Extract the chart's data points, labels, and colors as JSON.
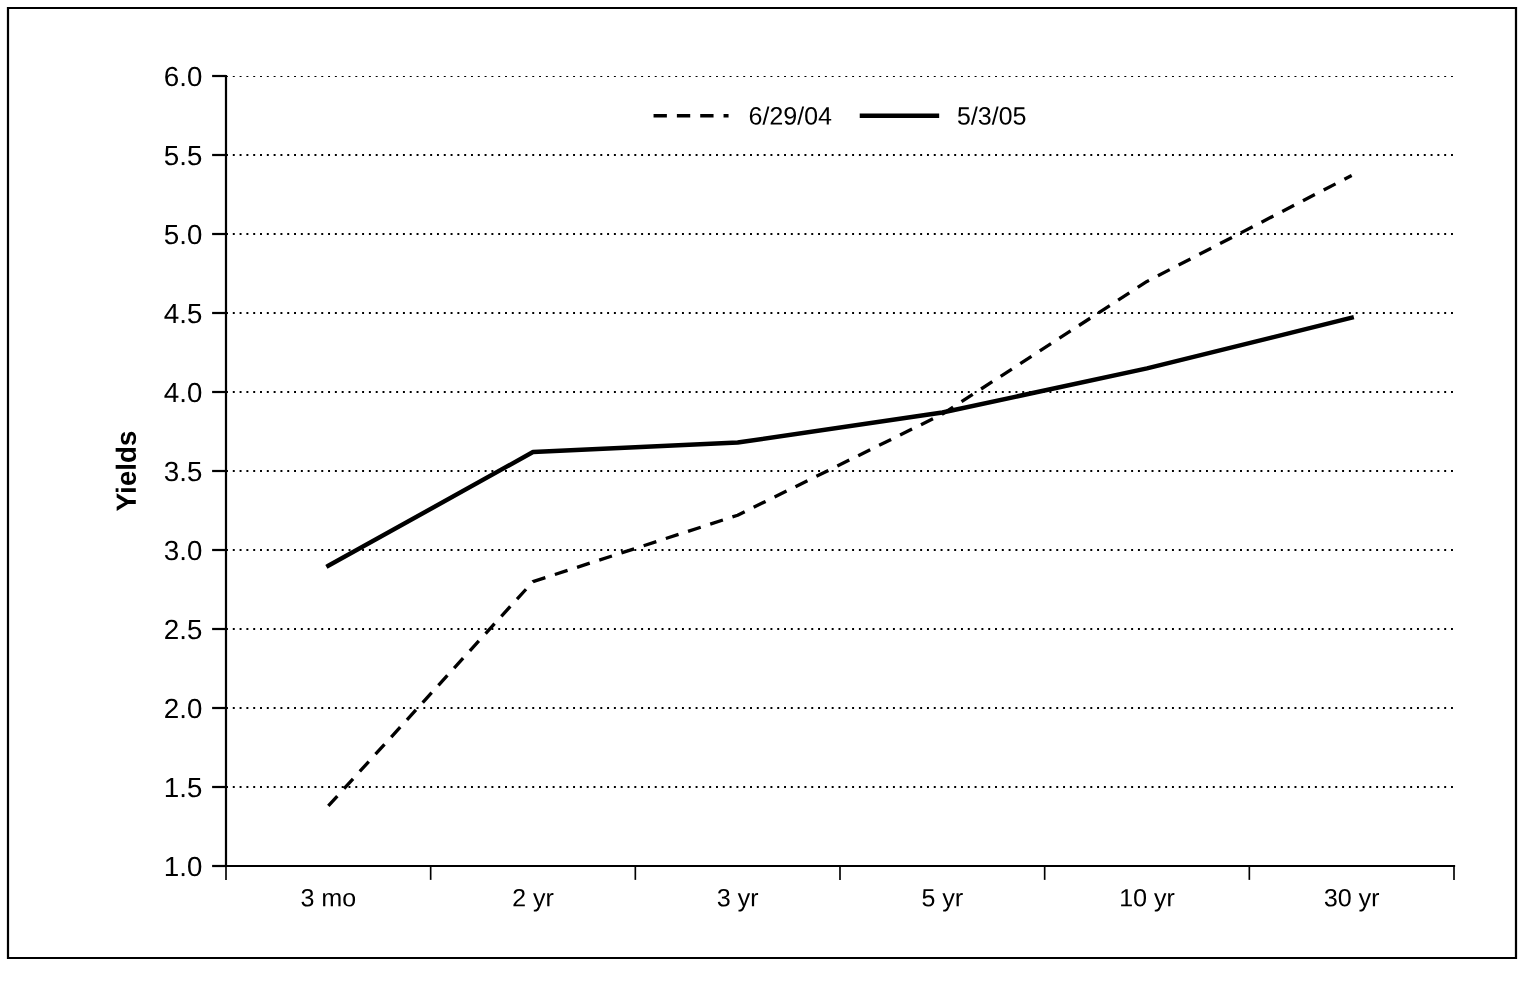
{
  "chart_data": {
    "type": "line",
    "ylabel": "Yields",
    "categories": [
      "3 mo",
      "2 yr",
      "3 yr",
      "5 yr",
      "10 yr",
      "30 yr"
    ],
    "series": [
      {
        "name": "6/29/04",
        "color": "#000000",
        "line_style": "dashed",
        "values": [
          1.38,
          2.8,
          3.22,
          3.86,
          4.7,
          5.37
        ]
      },
      {
        "name": "5/3/05",
        "color": "#000000",
        "line_style": "solid",
        "values": [
          2.9,
          3.62,
          3.68,
          3.87,
          4.15,
          4.47
        ]
      }
    ],
    "ylim": [
      1.0,
      6.0
    ],
    "yticks": [
      {
        "value": 1.0,
        "label": "1.0"
      },
      {
        "value": 1.5,
        "label": "1.5"
      },
      {
        "value": 2.0,
        "label": "2.0"
      },
      {
        "value": 2.5,
        "label": "2.5"
      },
      {
        "value": 3.0,
        "label": "3.0"
      },
      {
        "value": 3.5,
        "label": "3.5"
      },
      {
        "value": 4.0,
        "label": "4.0"
      },
      {
        "value": 4.5,
        "label": "4.5"
      },
      {
        "value": 5.0,
        "label": "5.0"
      },
      {
        "value": 5.5,
        "label": "5.5"
      },
      {
        "value": 6.0,
        "label": "6.0"
      }
    ],
    "grid": "y",
    "legend": "top",
    "marker": "none"
  }
}
